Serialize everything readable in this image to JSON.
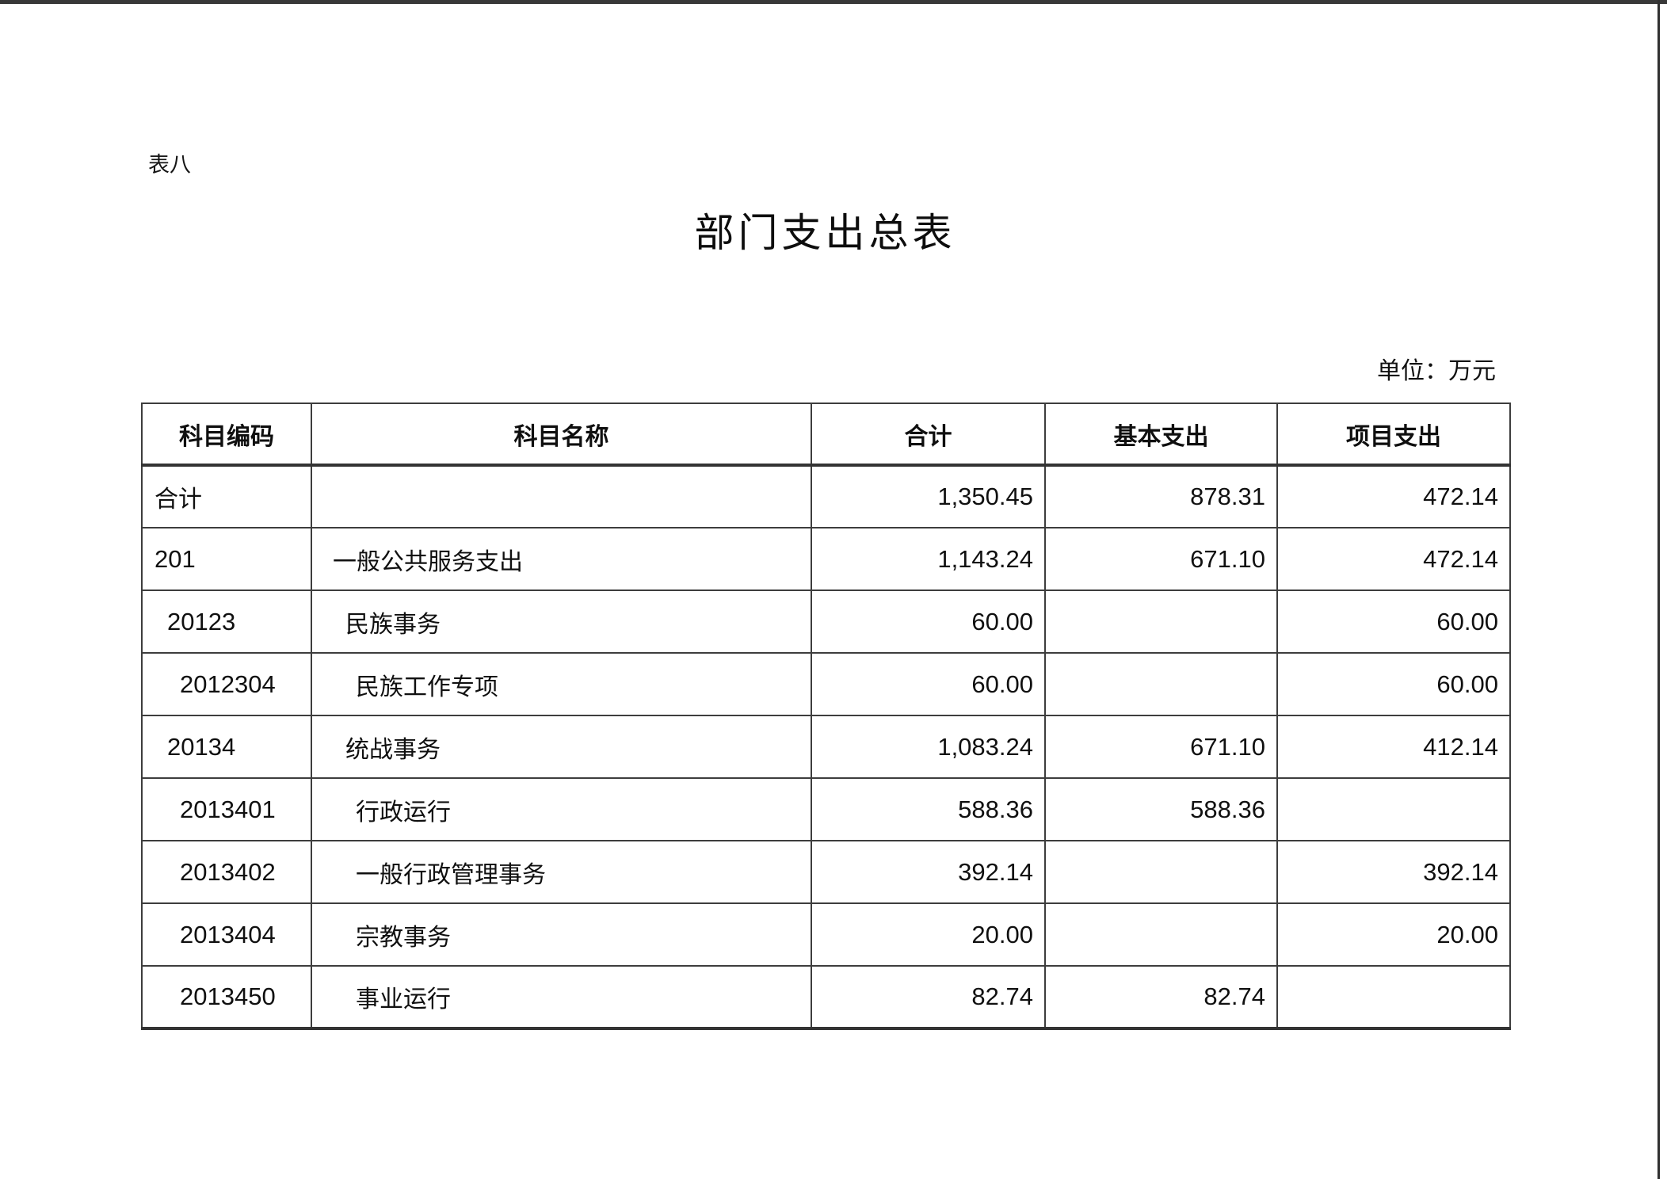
{
  "page": {
    "table_label": "表八",
    "title": "部门支出总表",
    "unit_note": "单位：万元"
  },
  "colors": {
    "border": "#3d3d3d",
    "text": "#111111",
    "edge_line": "#383838"
  },
  "table": {
    "columns": [
      "科目编码",
      "科目名称",
      "合计",
      "基本支出",
      "项目支出"
    ],
    "rows": [
      {
        "code": "合计",
        "code_is_cjk": true,
        "name": "",
        "total": "1,350.45",
        "basic": "878.31",
        "project": "472.14",
        "indent": 1
      },
      {
        "code": "201",
        "code_is_cjk": false,
        "name": "一般公共服务支出",
        "total": "1,143.24",
        "basic": "671.10",
        "project": "472.14",
        "indent": 1
      },
      {
        "code": "20123",
        "code_is_cjk": false,
        "name": "民族事务",
        "total": "60.00",
        "basic": "",
        "project": "60.00",
        "indent": 2
      },
      {
        "code": "2012304",
        "code_is_cjk": false,
        "name": "民族工作专项",
        "total": "60.00",
        "basic": "",
        "project": "60.00",
        "indent": 3
      },
      {
        "code": "20134",
        "code_is_cjk": false,
        "name": "统战事务",
        "total": "1,083.24",
        "basic": "671.10",
        "project": "412.14",
        "indent": 2
      },
      {
        "code": "2013401",
        "code_is_cjk": false,
        "name": "行政运行",
        "total": "588.36",
        "basic": "588.36",
        "project": "",
        "indent": 3
      },
      {
        "code": "2013402",
        "code_is_cjk": false,
        "name": "一般行政管理事务",
        "total": "392.14",
        "basic": "",
        "project": "392.14",
        "indent": 3
      },
      {
        "code": "2013404",
        "code_is_cjk": false,
        "name": "宗教事务",
        "total": "20.00",
        "basic": "",
        "project": "20.00",
        "indent": 3
      },
      {
        "code": "2013450",
        "code_is_cjk": false,
        "name": "事业运行",
        "total": "82.74",
        "basic": "82.74",
        "project": "",
        "indent": 3
      }
    ]
  }
}
